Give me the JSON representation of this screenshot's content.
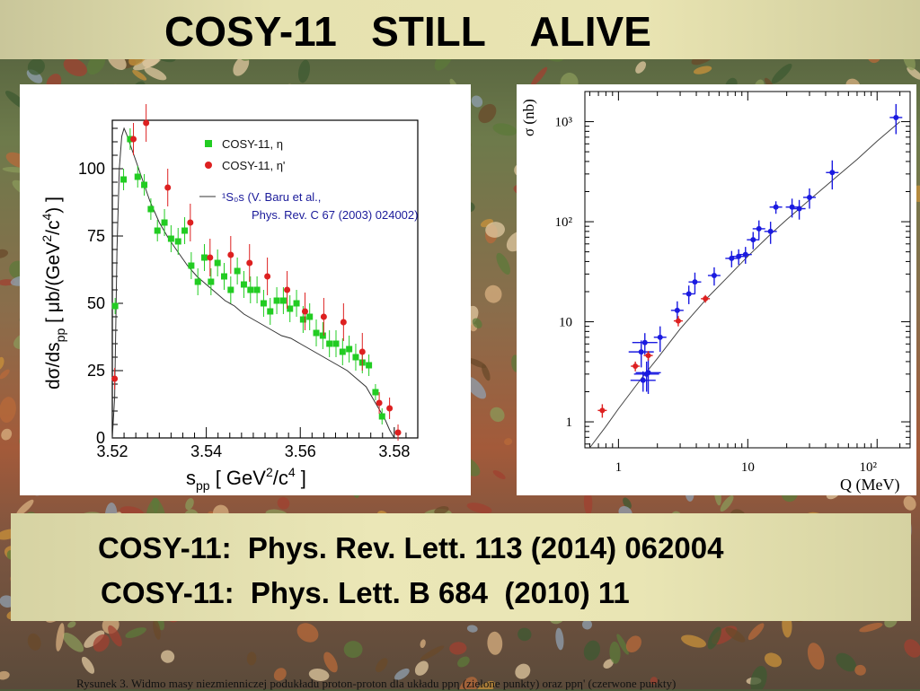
{
  "title": "COSY-11   STILL    ALIVE",
  "citations": [
    "COSY-11:  Phys. Rev. Lett. 113 (2014) 062004",
    "COSY-11:  Phys. Lett. B 684  (2010) 11"
  ],
  "caption": "Rysunek 3. Widmo masy niezmienniczej podukładu proton-proton dla układu ppη (zielone punkty) oraz ppη' (czerwone punkty)",
  "colors": {
    "green": "#22cc22",
    "red": "#dd2020",
    "blue": "#1a1ae0",
    "title_bar": "#e6e2b0"
  },
  "chart_data": [
    {
      "type": "scatter",
      "xlabel_main": "s",
      "xlabel_sub": "pp",
      "xlabel_rest": " [ GeV",
      "xlabel_sup": "2",
      "xlabel_end": "/c",
      "xlabel_sup2": "4",
      "xlabel_close": " ]",
      "ylabel": "dσ/ds",
      "ylabel_sub": "pp",
      "ylabel_rest": " [ μb/(GeV",
      "ylabel_sup": "2",
      "ylabel_mid": "/c",
      "ylabel_sup2": "4",
      "ylabel_close": ") ]",
      "xlim": [
        3.52,
        3.585
      ],
      "ylim": [
        0,
        118
      ],
      "xticks": [
        "3.52",
        "3.54",
        "3.56",
        "3.58"
      ],
      "yticks": [
        "0",
        "25",
        "50",
        "75",
        "100"
      ],
      "legend": [
        {
          "label": "COSY-11, η",
          "color": "#22cc22",
          "marker": "square"
        },
        {
          "label": "COSY-11, η'",
          "color": "#dd2020",
          "marker": "circle"
        }
      ],
      "curve_label_line1": "¹S₀s (V. Baru et al.,",
      "curve_label_line2": "Phys. Rev. C 67 (2003) 024002)",
      "series": [
        {
          "name": "COSY-11, η",
          "x": [
            3.5206,
            3.5224,
            3.5238,
            3.5254,
            3.5268,
            3.5282,
            3.5296,
            3.5311,
            3.5325,
            3.534,
            3.5354,
            3.5368,
            3.5382,
            3.5396,
            3.541,
            3.5424,
            3.5438,
            3.5452,
            3.5466,
            3.548,
            3.5494,
            3.5508,
            3.5522,
            3.5536,
            3.555,
            3.5564,
            3.5578,
            3.5592,
            3.5606,
            3.562,
            3.5634,
            3.5648,
            3.5662,
            3.5676,
            3.569,
            3.5704,
            3.5718,
            3.5732,
            3.5746,
            3.576,
            3.5774
          ],
          "y": [
            49,
            96,
            111,
            97,
            94,
            85,
            77,
            80,
            74,
            73,
            77,
            64,
            58,
            67,
            58,
            65,
            60,
            55,
            62,
            57,
            55,
            55,
            50,
            47,
            51,
            51,
            48,
            50,
            44,
            45,
            39,
            38,
            35,
            35,
            32,
            33,
            30,
            28,
            27,
            17,
            8
          ],
          "err": [
            3,
            4,
            4,
            4,
            4,
            4,
            4,
            5,
            5,
            5,
            5,
            5,
            5,
            5,
            5,
            5,
            5,
            5,
            5,
            5,
            5,
            5,
            5,
            5,
            5,
            5,
            5,
            5,
            5,
            5,
            5,
            5,
            5,
            5,
            5,
            5,
            5,
            4,
            4,
            3,
            3
          ]
        },
        {
          "name": "COSY-11, η'",
          "x": [
            3.5205,
            3.5245,
            3.5272,
            3.5318,
            3.5366,
            3.5408,
            3.5452,
            3.5492,
            3.553,
            3.5572,
            3.561,
            3.565,
            3.5692,
            3.5732,
            3.5768,
            3.579,
            3.5808
          ],
          "y": [
            22,
            111,
            117,
            93,
            80,
            67,
            68,
            65,
            60,
            55,
            47,
            45,
            43,
            32,
            13,
            11,
            2
          ],
          "err": [
            4,
            6,
            7,
            7,
            7,
            7,
            7,
            7,
            7,
            7,
            7,
            7,
            7,
            7,
            4,
            4,
            3
          ]
        }
      ],
      "curve_x": [
        3.52,
        3.5205,
        3.521,
        3.5215,
        3.522,
        3.5225,
        3.523,
        3.524,
        3.525,
        3.526,
        3.527,
        3.528,
        3.53,
        3.532,
        3.534,
        3.536,
        3.538,
        3.54,
        3.542,
        3.544,
        3.546,
        3.548,
        3.55,
        3.552,
        3.554,
        3.556,
        3.558,
        3.56,
        3.562,
        3.564,
        3.566,
        3.568,
        3.57,
        3.572,
        3.574,
        3.576,
        3.577,
        3.578,
        3.579,
        3.58
      ],
      "curve_y": [
        0,
        15,
        70,
        100,
        112,
        115,
        113,
        108,
        103,
        98,
        93,
        88,
        80,
        74,
        69,
        64,
        60,
        57,
        54,
        51,
        49,
        46,
        44,
        42,
        40,
        38,
        37,
        35,
        33,
        31,
        29,
        27,
        25,
        22,
        19,
        13,
        10,
        7,
        3,
        0
      ]
    },
    {
      "type": "scatter",
      "xscale": "log",
      "yscale": "log",
      "xlabel": "Q (MeV)",
      "ylabel": "σ (nb)",
      "xlim": [
        0.55,
        180
      ],
      "ylim": [
        0.55,
        2000
      ],
      "xticks": [
        "1",
        "10",
        "10²"
      ],
      "yticks": [
        "1",
        "10",
        "10²",
        "10³"
      ],
      "series": [
        {
          "name": "blue",
          "x": [
            1.5,
            1.55,
            1.6,
            1.65,
            1.7,
            2.1,
            2.85,
            3.5,
            3.9,
            5.5,
            7.5,
            8.5,
            9.6,
            11,
            12.2,
            15,
            16.5,
            22,
            25,
            30,
            45,
            140
          ],
          "y": [
            5,
            2.6,
            6.2,
            3.0,
            3.1,
            7.0,
            13,
            19,
            25,
            29,
            43,
            45,
            47,
            66,
            85,
            80,
            140,
            140,
            135,
            175,
            310,
            1100
          ],
          "err_lo": [
            1.5,
            0.6,
            1.5,
            1.0,
            1.2,
            2.0,
            3,
            4,
            6,
            6,
            8,
            8,
            9,
            13,
            18,
            20,
            20,
            30,
            30,
            40,
            100,
            350
          ],
          "err_hi": [
            1.5,
            0.6,
            1.5,
            1.0,
            1.2,
            2.0,
            3,
            4,
            6,
            6,
            8,
            8,
            9,
            13,
            18,
            20,
            20,
            30,
            30,
            40,
            100,
            400
          ]
        },
        {
          "name": "red",
          "x": [
            0.75,
            1.35,
            1.7,
            2.9,
            4.7
          ],
          "y": [
            1.3,
            3.6,
            4.6,
            10.2,
            17
          ],
          "err_lo": [
            0.2,
            0.4,
            0.5,
            1.2,
            1.5
          ],
          "err_hi": [
            0.2,
            0.4,
            0.5,
            1.2,
            1.5
          ]
        }
      ],
      "curve_x": [
        0.6,
        0.8,
        1,
        1.5,
        2,
        3,
        5,
        7,
        10,
        15,
        20,
        30,
        50,
        70,
        100,
        150
      ],
      "curve_y": [
        0.55,
        0.9,
        1.35,
        2.7,
        4.3,
        8.5,
        18,
        28,
        45,
        75,
        105,
        165,
        290,
        420,
        640,
        1000
      ]
    }
  ]
}
